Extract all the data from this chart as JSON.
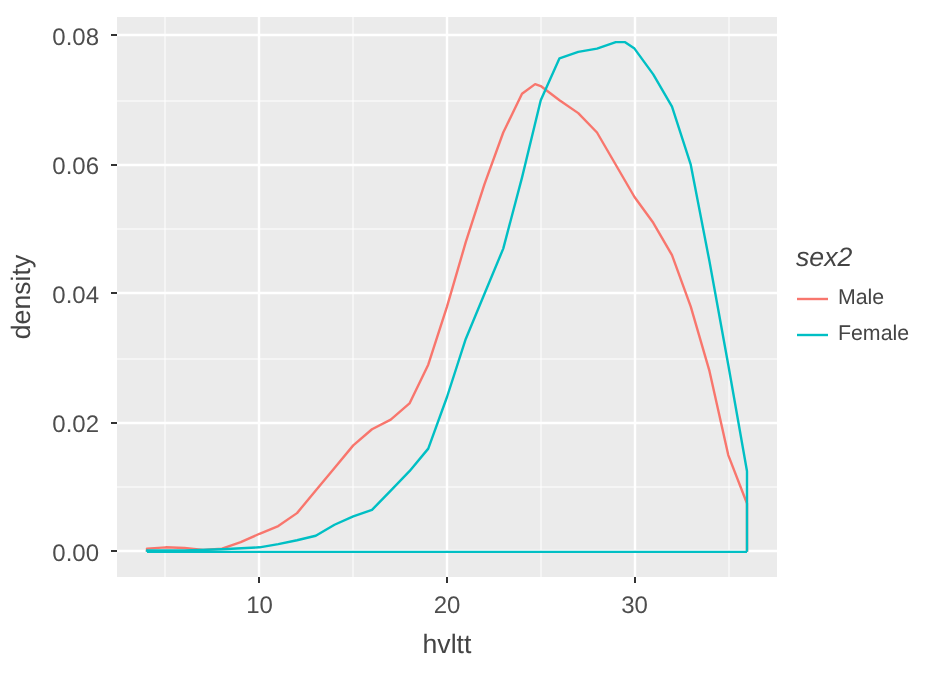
{
  "chart_data": {
    "type": "line",
    "xlabel": "hvltt",
    "ylabel": "density",
    "legend_title": "sex2",
    "legend": "right",
    "grid": true,
    "xlim": [
      2.4,
      37.6
    ],
    "xticks": [
      10,
      20,
      30
    ],
    "ylim": [
      -0.0039,
      0.0829
    ],
    "yticks": [
      {
        "value": 0,
        "label": "0.00"
      },
      {
        "value": 0.02,
        "label": "0.02"
      },
      {
        "value": 0.04,
        "label": "0.04"
      },
      {
        "value": 0.06,
        "label": "0.06"
      },
      {
        "value": 0.08,
        "label": "0.08"
      }
    ],
    "series": [
      {
        "name": "Male",
        "color": "#f8766d",
        "x": [
          4,
          4,
          5,
          6,
          7,
          8,
          9,
          10,
          11,
          12,
          13,
          14,
          15,
          16,
          17,
          18,
          19,
          20,
          21,
          22,
          23,
          24,
          24.7,
          25,
          26,
          27,
          28,
          29,
          30,
          31,
          32,
          33,
          34,
          35,
          36,
          36
        ],
        "values": [
          0,
          0.0005,
          0.0007,
          0.0006,
          0.0003,
          0.0005,
          0.0015,
          0.0028,
          0.004,
          0.006,
          0.0095,
          0.013,
          0.0165,
          0.019,
          0.0205,
          0.023,
          0.029,
          0.038,
          0.048,
          0.057,
          0.065,
          0.071,
          0.0725,
          0.0722,
          0.07,
          0.068,
          0.065,
          0.06,
          0.055,
          0.051,
          0.046,
          0.038,
          0.028,
          0.015,
          0.0075,
          0
        ]
      },
      {
        "name": "Female",
        "color": "#00bfc4",
        "x": [
          4,
          4,
          6,
          8,
          10,
          11,
          12,
          13,
          14,
          15,
          16,
          17,
          18,
          19,
          20,
          21,
          22,
          23,
          24,
          25,
          26,
          27,
          28,
          29,
          29.5,
          30,
          31,
          32,
          33,
          34,
          35,
          36,
          36
        ],
        "values": [
          0,
          0.0002,
          0.0002,
          0.0004,
          0.0007,
          0.0012,
          0.0018,
          0.0025,
          0.0042,
          0.0055,
          0.0065,
          0.0095,
          0.0125,
          0.016,
          0.024,
          0.033,
          0.04,
          0.047,
          0.058,
          0.07,
          0.0765,
          0.0775,
          0.078,
          0.079,
          0.079,
          0.078,
          0.074,
          0.069,
          0.06,
          0.045,
          0.029,
          0.0125,
          0
        ]
      }
    ],
    "ref_lines": [
      {
        "axis": "y",
        "value": 0,
        "color": "#00bfc4"
      }
    ]
  }
}
